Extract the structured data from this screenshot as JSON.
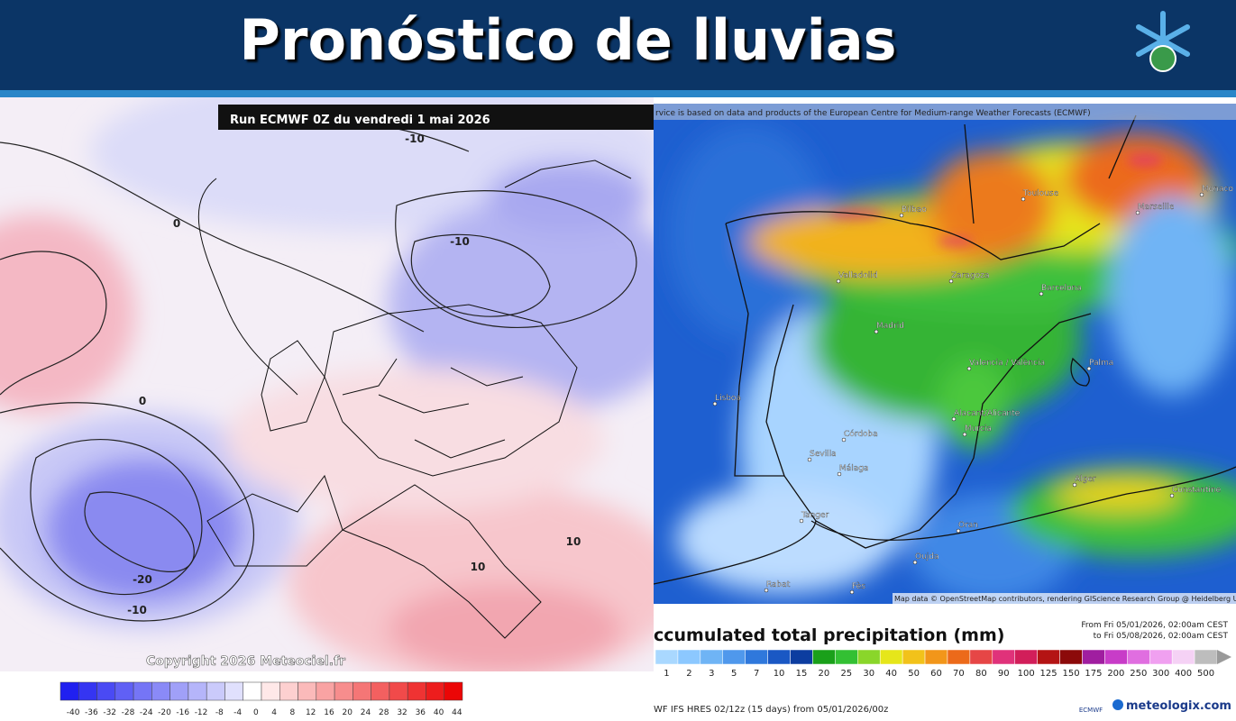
{
  "header": {
    "title": "Pronóstico de lluvias"
  },
  "left_map": {
    "run_label": "Run ECMWF 0Z du vendredi 1 mai 2026",
    "contour_labels": [
      "-10",
      "0",
      "-10",
      "0",
      "-20",
      "-10",
      "10",
      "10"
    ],
    "copyright": "Copyright 2026 Meteociel.fr",
    "legend": {
      "labels": [
        "-40",
        "-36",
        "-32",
        "-28",
        "-24",
        "-20",
        "-16",
        "-12",
        "-8",
        "-4",
        "0",
        "4",
        "8",
        "12",
        "16",
        "20",
        "24",
        "28",
        "32",
        "36",
        "40",
        "44"
      ],
      "colors": [
        "#2020f0",
        "#3535f2",
        "#4a4af4",
        "#6060f5",
        "#7575f6",
        "#8a8af7",
        "#a0a0f8",
        "#b5b5fa",
        "#cacafb",
        "#e0e0fd",
        "#ffffff",
        "#ffe8e8",
        "#fdd0d0",
        "#fbbaba",
        "#f9a3a3",
        "#f78d8d",
        "#f57676",
        "#f36060",
        "#f14a4a",
        "#ef3333",
        "#ed1d1d",
        "#eb0606"
      ]
    }
  },
  "right_map": {
    "credit": "rvice is based on data and products of the European Centre for Medium-range Weather Forecasts (ECMWF)",
    "cities": [
      "Toulouse",
      "Marseille",
      "Monaco",
      "Bilbao",
      "Valladolid",
      "Zaragoza",
      "Barcelona",
      "Madrid",
      "Valencia / València",
      "Palma",
      "Lisboa",
      "Córdoba",
      "Sevilla",
      "Alacant/Alicante",
      "Murcia",
      "Málaga",
      "Alger",
      "Constantine",
      "Oran",
      "Tanger",
      "Oujda",
      "Rabat",
      "Fès"
    ],
    "attribution": "Map data © OpenStreetMap contributors, rendering GIScience Research Group @ Heidelberg University",
    "legend": {
      "title": "ccumulated total precipitation (mm)",
      "from": "From Fri 05/01/2026, 02:00am CEST",
      "to": "to Fri 05/08/2026, 02:00am CEST",
      "labels": [
        "1",
        "2",
        "3",
        "5",
        "7",
        "10",
        "15",
        "20",
        "25",
        "30",
        "40",
        "50",
        "60",
        "70",
        "80",
        "90",
        "100",
        "125",
        "150",
        "175",
        "200",
        "250",
        "300",
        "400",
        "500"
      ],
      "colors": [
        "#a9d8ff",
        "#8cc8ff",
        "#6fb4f5",
        "#4f98ec",
        "#2f78dc",
        "#1a58c4",
        "#0c3da0",
        "#1aa01a",
        "#33c033",
        "#8ad62a",
        "#e6e61a",
        "#f2c21a",
        "#f2961a",
        "#ec6a1a",
        "#e64646",
        "#e0327a",
        "#d21e5a",
        "#b41414",
        "#8c0a0a",
        "#a01ea0",
        "#c83cc8",
        "#e06ee0",
        "#f0a0f0",
        "#f5d2f5",
        "#bdbdbd"
      ]
    },
    "footer": "WF IFS HRES 02/12z (15 days) from 05/01/2026/00z",
    "ecmwf": "ECMWF",
    "brand": "meteologix.com"
  }
}
